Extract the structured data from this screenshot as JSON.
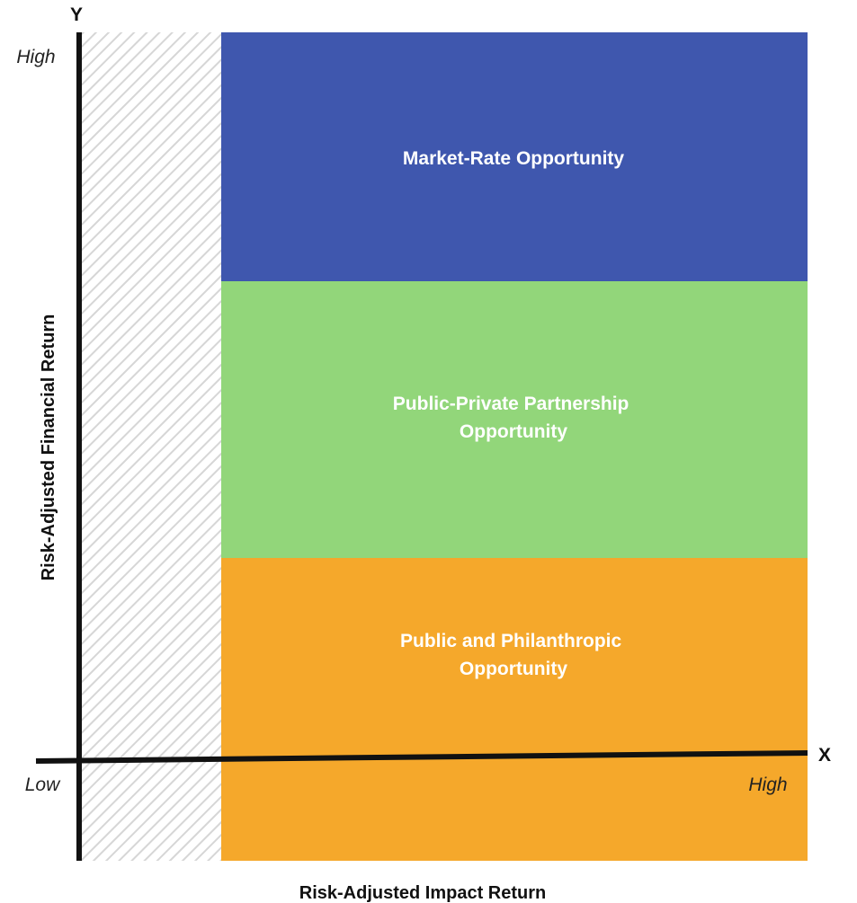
{
  "axes": {
    "y_letter": "Y",
    "x_letter": "X",
    "y_title": "Risk-Adjusted Financial Return",
    "x_title": "Risk-Adjusted Impact Return",
    "y_high": "High",
    "x_low": "Low",
    "x_high": "High"
  },
  "zones": [
    {
      "lines": [
        "Market-Rate Opportunity"
      ],
      "color": "#3f57ae"
    },
    {
      "lines": [
        "Public-Private Partnership",
        "Opportunity"
      ],
      "color": "#92d67a"
    },
    {
      "lines": [
        "Public and Philanthropic",
        "Opportunity"
      ],
      "color": "#f5a82b"
    }
  ],
  "colors": {
    "axis": "#111111",
    "hatch_stroke": "#d6d6d6"
  }
}
